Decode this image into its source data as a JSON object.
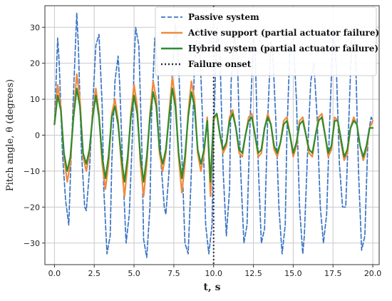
{
  "chart_data": {
    "type": "line",
    "title": "",
    "xlabel": "t, s",
    "ylabel": "Pitch angle, θ (degrees)",
    "xlim": [
      -0.6,
      20.4
    ],
    "ylim": [
      -36,
      36
    ],
    "xticks": [
      0,
      2.5,
      5,
      7.5,
      10,
      12.5,
      15,
      17.5,
      20
    ],
    "xtick_labels": [
      "0.0",
      "2.5",
      "5.0",
      "7.5",
      "10.0",
      "12.5",
      "15.0",
      "17.5",
      "20.0"
    ],
    "yticks": [
      -30,
      -20,
      -10,
      0,
      10,
      20,
      30
    ],
    "ytick_labels": [
      "−30",
      "−20",
      "−10",
      "0",
      "10",
      "20",
      "30"
    ],
    "grid": true,
    "legend_position": "top-right",
    "failure_onset_x": 10,
    "series": [
      {
        "name": "Passive system",
        "style": "dashed",
        "color": "#3a74c4",
        "x": [
          0.0,
          0.2,
          0.3,
          0.5,
          0.7,
          0.9,
          1.0,
          1.2,
          1.4,
          1.5,
          1.7,
          1.9,
          2.0,
          2.2,
          2.4,
          2.6,
          2.8,
          3.0,
          3.1,
          3.3,
          3.5,
          3.6,
          3.8,
          4.0,
          4.1,
          4.3,
          4.5,
          4.7,
          4.9,
          5.0,
          5.1,
          5.3,
          5.5,
          5.6,
          5.8,
          6.0,
          6.1,
          6.3,
          6.5,
          6.7,
          6.9,
          7.0,
          7.2,
          7.4,
          7.6,
          7.8,
          8.0,
          8.2,
          8.4,
          8.6,
          8.8,
          9.0,
          9.1,
          9.3,
          9.5,
          9.7,
          9.9,
          10.0,
          10.2,
          10.4,
          10.6,
          10.8,
          11.0,
          11.1,
          11.3,
          11.5,
          11.7,
          11.9,
          12.1,
          12.3,
          12.5,
          12.6,
          12.8,
          13.0,
          13.2,
          13.4,
          13.6,
          13.7,
          13.9,
          14.1,
          14.3,
          14.5,
          14.6,
          14.8,
          15.0,
          15.2,
          15.4,
          15.6,
          15.7,
          15.9,
          16.1,
          16.3,
          16.5,
          16.7,
          16.9,
          17.1,
          17.3,
          17.5,
          17.7,
          17.9,
          18.1,
          18.3,
          18.5,
          18.7,
          18.9,
          19.1,
          19.3,
          19.5,
          19.7,
          19.9,
          20.0
        ],
        "y": [
          3,
          27,
          20,
          -5,
          -18,
          -25,
          -12,
          12,
          34,
          25,
          -5,
          -20,
          -21,
          -10,
          8,
          25,
          28,
          8,
          -15,
          -33,
          -28,
          -8,
          15,
          22,
          14,
          -10,
          -30,
          -22,
          0,
          20,
          30,
          25,
          -5,
          -29,
          -34,
          -20,
          5,
          27,
          18,
          -8,
          -20,
          -22,
          -10,
          18,
          31,
          20,
          -5,
          -30,
          -33,
          -10,
          20,
          30,
          28,
          5,
          -25,
          -33,
          -25,
          0,
          30,
          22,
          -10,
          -28,
          -15,
          15,
          28,
          20,
          -10,
          -30,
          -25,
          5,
          27,
          25,
          -8,
          -30,
          -26,
          5,
          26,
          24,
          5,
          -20,
          -33,
          -25,
          0,
          25,
          27,
          10,
          -20,
          -33,
          -28,
          -5,
          15,
          20,
          5,
          -20,
          -30,
          -22,
          5,
          28,
          20,
          -8,
          -20,
          -20,
          5,
          30,
          25,
          -10,
          -32,
          -28,
          0,
          5,
          4
        ]
      },
      {
        "name": "Active support (partial actuator failure)",
        "style": "solid",
        "color": "#f08a3c",
        "x": [
          0.0,
          0.2,
          0.4,
          0.6,
          0.8,
          1.0,
          1.2,
          1.4,
          1.6,
          1.8,
          2.0,
          2.2,
          2.4,
          2.6,
          2.8,
          3.0,
          3.2,
          3.4,
          3.6,
          3.8,
          4.0,
          4.2,
          4.4,
          4.6,
          4.8,
          5.0,
          5.2,
          5.4,
          5.6,
          5.8,
          6.0,
          6.2,
          6.4,
          6.6,
          6.8,
          7.0,
          7.2,
          7.4,
          7.6,
          7.8,
          8.0,
          8.2,
          8.4,
          8.6,
          8.8,
          9.0,
          9.2,
          9.4,
          9.6,
          9.8,
          10.0,
          10.2,
          10.4,
          10.6,
          10.8,
          11.0,
          11.2,
          11.4,
          11.6,
          11.8,
          12.0,
          12.2,
          12.4,
          12.6,
          12.8,
          13.0,
          13.2,
          13.4,
          13.6,
          13.8,
          14.0,
          14.2,
          14.4,
          14.6,
          14.8,
          15.0,
          15.2,
          15.4,
          15.6,
          15.8,
          16.0,
          16.2,
          16.4,
          16.6,
          16.8,
          17.0,
          17.2,
          17.4,
          17.6,
          17.8,
          18.0,
          18.2,
          18.4,
          18.6,
          18.8,
          19.0,
          19.2,
          19.4,
          19.6,
          19.8,
          20.0
        ],
        "y": [
          3,
          14,
          8,
          -6,
          -13,
          -8,
          6,
          17,
          10,
          -6,
          -10,
          -5,
          6,
          13,
          6,
          -8,
          -15,
          -8,
          6,
          10,
          4,
          -8,
          -17,
          -8,
          6,
          14,
          8,
          -8,
          -17,
          -8,
          6,
          15,
          10,
          -5,
          -10,
          -5,
          6,
          16,
          10,
          -6,
          -16,
          -8,
          6,
          15,
          10,
          -5,
          -10,
          -5,
          5,
          -17,
          4,
          6,
          0,
          -5,
          -3,
          5,
          7,
          2,
          -5,
          -6,
          0,
          5,
          6,
          0,
          -6,
          -5,
          2,
          6,
          3,
          -4,
          -6,
          -2,
          4,
          5,
          0,
          -6,
          -3,
          4,
          5,
          0,
          -5,
          -6,
          0,
          5,
          6,
          0,
          -6,
          -4,
          5,
          4,
          -2,
          -7,
          -5,
          2,
          5,
          3,
          -3,
          -7,
          -4,
          2,
          4
        ]
      },
      {
        "name": "Hybrid system (partial actuator failure)",
        "style": "solid",
        "color": "#2e8b2e",
        "x": [
          0.0,
          0.2,
          0.4,
          0.6,
          0.8,
          1.0,
          1.2,
          1.4,
          1.6,
          1.8,
          2.0,
          2.2,
          2.4,
          2.6,
          2.8,
          3.0,
          3.2,
          3.4,
          3.6,
          3.8,
          4.0,
          4.2,
          4.4,
          4.6,
          4.8,
          5.0,
          5.2,
          5.4,
          5.6,
          5.8,
          6.0,
          6.2,
          6.4,
          6.6,
          6.8,
          7.0,
          7.2,
          7.4,
          7.6,
          7.8,
          8.0,
          8.2,
          8.4,
          8.6,
          8.8,
          9.0,
          9.2,
          9.4,
          9.6,
          9.8,
          10.0,
          10.2,
          10.4,
          10.6,
          10.8,
          11.0,
          11.2,
          11.4,
          11.6,
          11.8,
          12.0,
          12.2,
          12.4,
          12.6,
          12.8,
          13.0,
          13.2,
          13.4,
          13.6,
          13.8,
          14.0,
          14.2,
          14.4,
          14.6,
          14.8,
          15.0,
          15.2,
          15.4,
          15.6,
          15.8,
          16.0,
          16.2,
          16.4,
          16.6,
          16.8,
          17.0,
          17.2,
          17.4,
          17.6,
          17.8,
          18.0,
          18.2,
          18.4,
          18.6,
          18.8,
          19.0,
          19.2,
          19.4,
          19.6,
          19.8,
          20.0
        ],
        "y": [
          3,
          11,
          7,
          -5,
          -10,
          -6,
          5,
          13,
          8,
          -5,
          -8,
          -4,
          5,
          11,
          5,
          -6,
          -12,
          -6,
          5,
          8,
          3,
          -6,
          -13,
          -6,
          5,
          11,
          6,
          -6,
          -13,
          -6,
          5,
          12,
          8,
          -4,
          -8,
          -4,
          5,
          13,
          8,
          -5,
          -12,
          -6,
          5,
          12,
          8,
          -4,
          -8,
          -4,
          4,
          -13,
          5,
          6,
          0,
          -4,
          -2,
          4,
          6,
          2,
          -4,
          -5,
          0,
          4,
          5,
          0,
          -5,
          -4,
          2,
          5,
          3,
          -3,
          -5,
          -2,
          3,
          4,
          0,
          -5,
          -2,
          3,
          4,
          0,
          -4,
          -5,
          0,
          4,
          5,
          0,
          -5,
          -3,
          4,
          4,
          -1,
          -6,
          -4,
          2,
          4,
          3,
          -3,
          -6,
          -3,
          2,
          2
        ]
      },
      {
        "name": "Failure onset",
        "style": "dotted",
        "color": "#2a2a3a"
      }
    ]
  }
}
